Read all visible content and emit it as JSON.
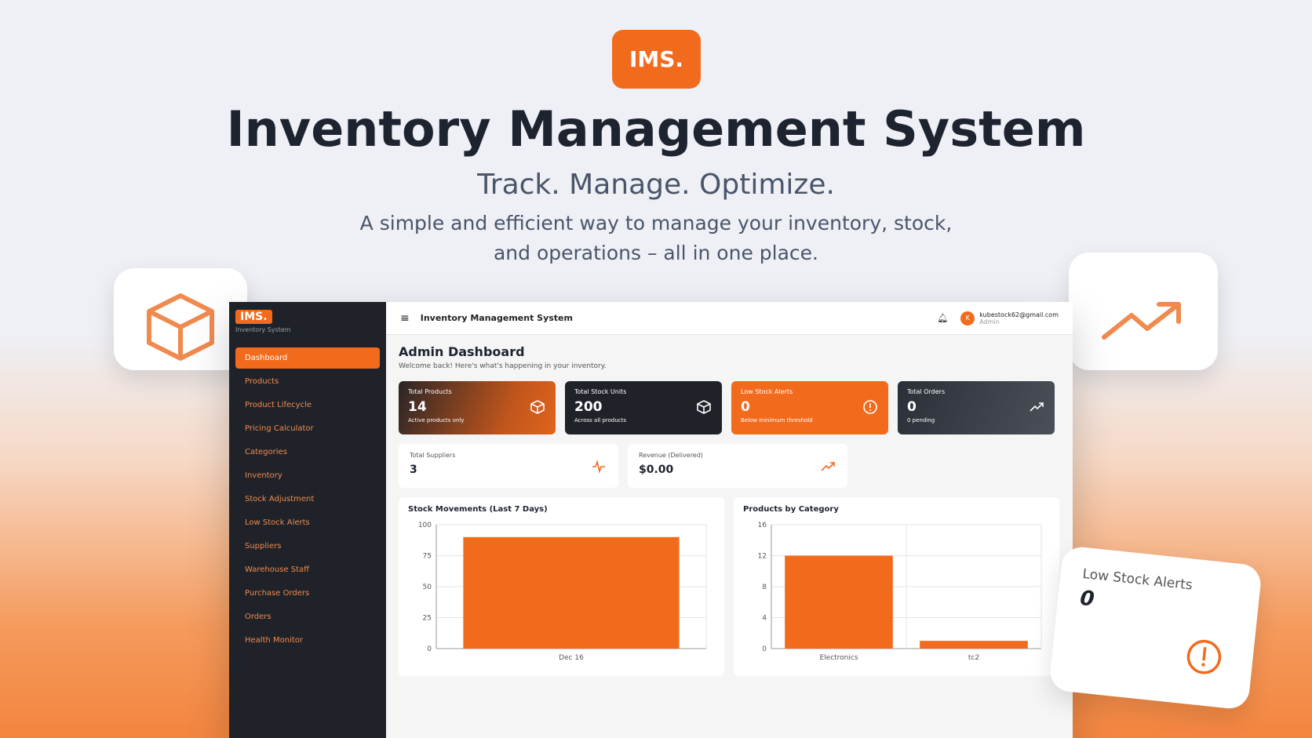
{
  "logo": "IMS.",
  "hero": {
    "title": "Inventory Management System",
    "tagline": "Track. Manage. Optimize.",
    "description_lines": [
      "A simple and efficient way to manage your inventory, stock,",
      "and operations – all in one place."
    ]
  },
  "sidebar": {
    "logo": "IMS.",
    "subtitle": "Inventory System",
    "items": [
      "Dashboard",
      "Products",
      "Product Lifecycle",
      "Pricing Calculator",
      "Categories",
      "Inventory",
      "Stock Adjustment",
      "Low Stock Alerts",
      "Suppliers",
      "Warehouse Staff",
      "Purchase Orders",
      "Orders",
      "Health Monitor"
    ]
  },
  "topbar": {
    "title": "Inventory Management System",
    "avatar": "K",
    "email": "kubestock62@gmail.com",
    "role": "Admin"
  },
  "dashboard": {
    "title": "Admin Dashboard",
    "welcome": "Welcome back! Here's what's happening in your inventory."
  },
  "stats": [
    {
      "label": "Total Products",
      "value": 14,
      "note": "Active products only"
    },
    {
      "label": "Total Stock Units",
      "value": 200,
      "note": "Across all products"
    },
    {
      "label": "Low Stock Alerts",
      "value": 0,
      "note": "Below minimum threshold"
    },
    {
      "label": "Total Orders",
      "value": 0,
      "note": "0 pending"
    }
  ],
  "secondary_stats": [
    {
      "label": "Total Suppliers",
      "value": 3
    },
    {
      "label": "Revenue (Delivered)",
      "value": "$0.00"
    }
  ],
  "chart_data": [
    {
      "type": "bar",
      "title": "Stock Movements (Last 7 Days)",
      "categories": [
        "Dec 16"
      ],
      "values": [
        90
      ],
      "color": "#f26b1d",
      "ylim": [
        0,
        100
      ],
      "yticks": [
        0,
        25,
        50,
        75,
        100
      ],
      "grid": true
    },
    {
      "type": "bar",
      "title": "Products by Category",
      "categories": [
        "Electronics",
        "tc2"
      ],
      "values": [
        12,
        1
      ],
      "color": "#f26b1d",
      "ylim": [
        0,
        16
      ],
      "yticks": [
        0,
        4,
        8,
        12,
        16
      ],
      "grid": true
    }
  ],
  "floating_card": {
    "label": "Low Stock Alerts",
    "value": 0
  }
}
